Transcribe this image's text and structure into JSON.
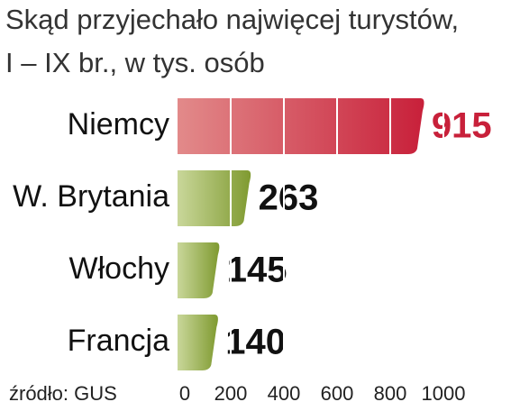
{
  "chart_data": {
    "type": "bar",
    "orientation": "horizontal",
    "title": "Skąd przyjechało najwięcej turystów,",
    "subtitle": "I – IX br., w tys. osób",
    "source": "źródło: GUS",
    "categories": [
      "Niemcy",
      "W. Brytania",
      "Włochy",
      "Francja"
    ],
    "values": [
      915,
      263,
      145,
      140
    ],
    "colors": [
      "#c8203a",
      "#8aa33a",
      "#8aa33a",
      "#8aa33a"
    ],
    "value_label_colors": [
      "#c8203a",
      "#111111",
      "#111111",
      "#111111"
    ],
    "xlim": [
      0,
      1000
    ],
    "xticks": [
      0,
      200,
      400,
      600,
      800,
      1000
    ],
    "grid": true
  }
}
